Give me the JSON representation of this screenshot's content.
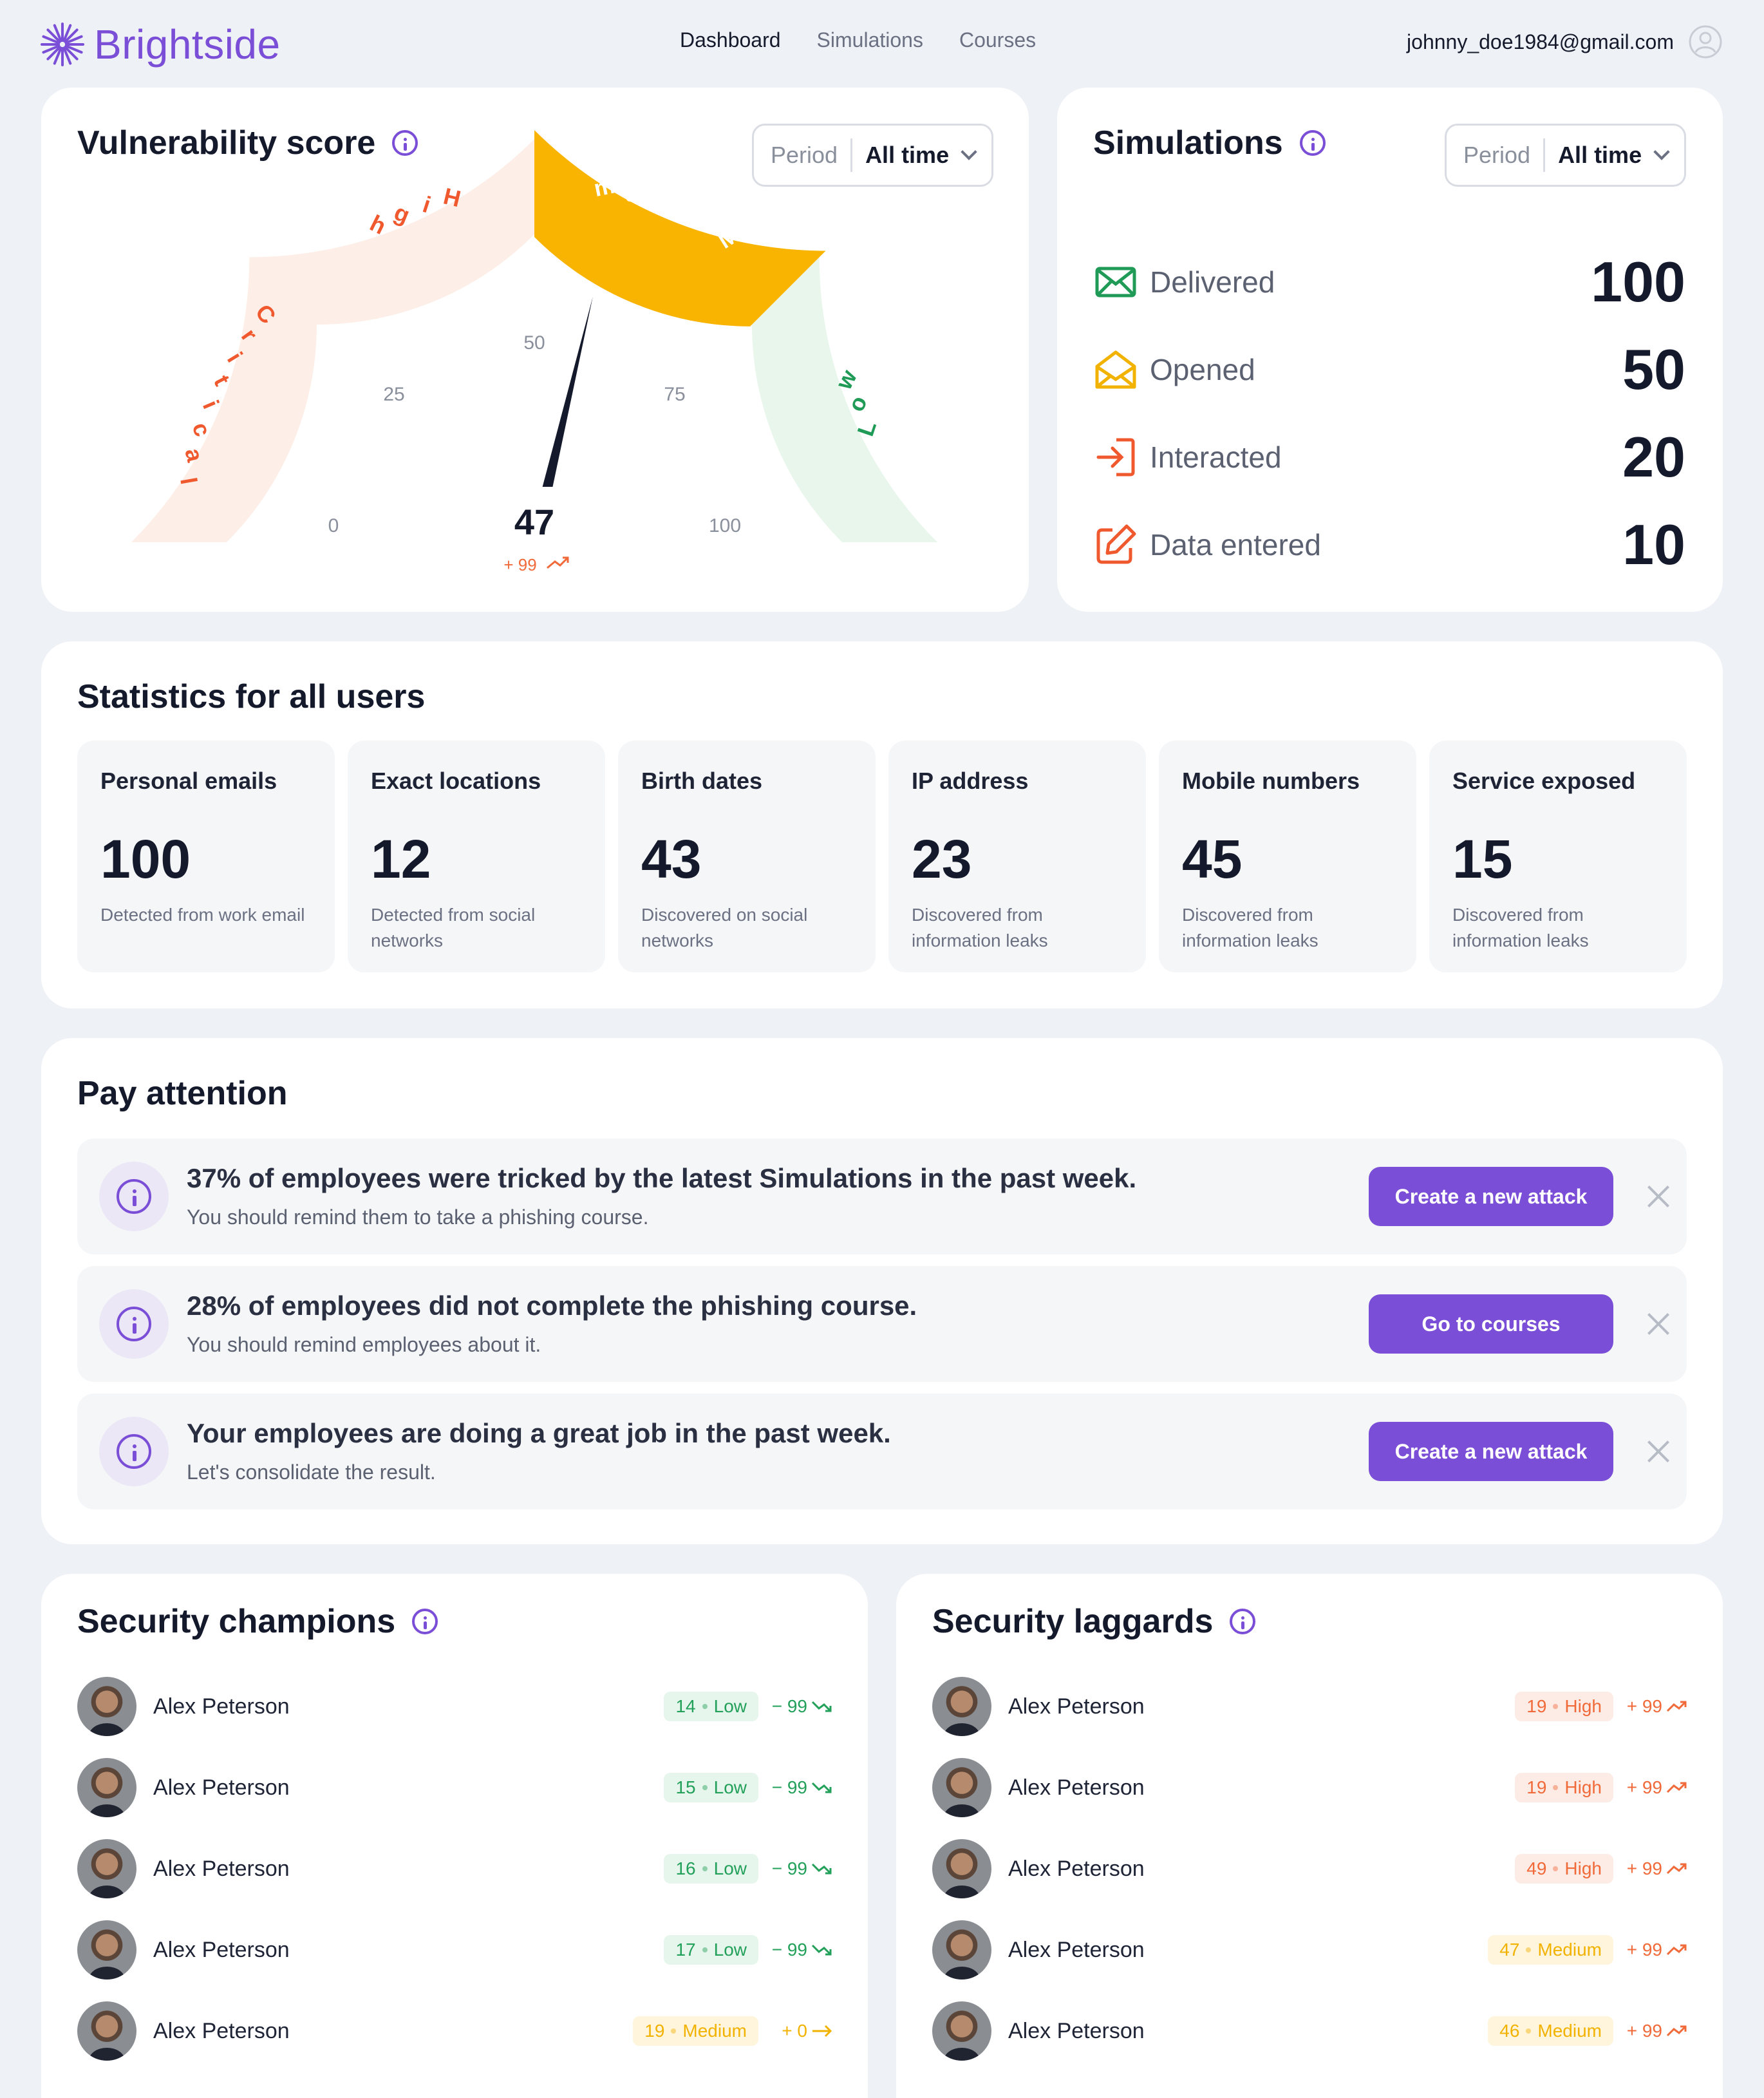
{
  "header": {
    "brand": "Brightside",
    "nav": [
      "Dashboard",
      "Simulations",
      "Courses"
    ],
    "user_email": "johnny_doe1984@gmail.com"
  },
  "vulnerability": {
    "title": "Vulnerability score",
    "period_label": "Period",
    "period_value": "All time",
    "score": "47",
    "change": "+ 99",
    "zones": [
      "Low",
      "Medium",
      "High",
      "Critical"
    ],
    "ticks": [
      "0",
      "25",
      "50",
      "75",
      "100"
    ],
    "score_value": 47
  },
  "simulations": {
    "title": "Simulations",
    "period_label": "Period",
    "period_value": "All time",
    "rows": [
      {
        "label": "Delivered",
        "value": "100",
        "icon": "mail-icon",
        "color": "#1f9b57"
      },
      {
        "label": "Opened",
        "value": "50",
        "icon": "mail-open-icon",
        "color": "#f2b200"
      },
      {
        "label": "Interacted",
        "value": "20",
        "icon": "enter-icon",
        "color": "#f0582e"
      },
      {
        "label": "Data entered",
        "value": "10",
        "icon": "edit-icon",
        "color": "#f0582e"
      }
    ]
  },
  "statistics": {
    "title": "Statistics for all users",
    "items": [
      {
        "title": "Personal emails",
        "value": "100",
        "desc": "Detected from work email"
      },
      {
        "title": "Exact locations",
        "value": "12",
        "desc": "Detected from social networks"
      },
      {
        "title": "Birth dates",
        "value": "43",
        "desc": "Discovered on social networks"
      },
      {
        "title": "IP address",
        "value": "23",
        "desc": "Discovered from information leaks"
      },
      {
        "title": "Mobile numbers",
        "value": "45",
        "desc": "Discovered from information leaks"
      },
      {
        "title": "Service exposed",
        "value": "15",
        "desc": "Discovered from information leaks"
      }
    ]
  },
  "attention": {
    "title": "Pay attention",
    "alerts": [
      {
        "heading": "37% of employees were tricked by the latest Simulations in the past week.",
        "sub": "You should remind them to take a phishing course.",
        "button": "Create a new attack"
      },
      {
        "heading": "28% of employees did not complete the phishing course.",
        "sub": "You should remind employees about it.",
        "button": "Go to courses"
      },
      {
        "heading": "Your employees are doing a great job in the past week.",
        "sub": "Let's consolidate the result.",
        "button": "Create a new attack"
      }
    ]
  },
  "champions": {
    "title": "Security champions",
    "rows": [
      {
        "name": "Alex Peterson",
        "score": "14",
        "level": "Low",
        "delta": "− 99",
        "trend": "down"
      },
      {
        "name": "Alex Peterson",
        "score": "15",
        "level": "Low",
        "delta": "− 99",
        "trend": "down"
      },
      {
        "name": "Alex Peterson",
        "score": "16",
        "level": "Low",
        "delta": "− 99",
        "trend": "down"
      },
      {
        "name": "Alex Peterson",
        "score": "17",
        "level": "Low",
        "delta": "− 99",
        "trend": "down"
      },
      {
        "name": "Alex Peterson",
        "score": "19",
        "level": "Medium",
        "delta": "+ 0",
        "trend": "flat"
      }
    ]
  },
  "laggards": {
    "title": "Security laggards",
    "rows": [
      {
        "name": "Alex Peterson",
        "score": "19",
        "level": "High",
        "delta": "+ 99",
        "trend": "up"
      },
      {
        "name": "Alex Peterson",
        "score": "19",
        "level": "High",
        "delta": "+ 99",
        "trend": "up"
      },
      {
        "name": "Alex Peterson",
        "score": "49",
        "level": "High",
        "delta": "+ 99",
        "trend": "up"
      },
      {
        "name": "Alex Peterson",
        "score": "47",
        "level": "Medium",
        "delta": "+ 99",
        "trend": "up"
      },
      {
        "name": "Alex Peterson",
        "score": "46",
        "level": "Medium",
        "delta": "+ 99",
        "trend": "up"
      }
    ]
  },
  "colors": {
    "accent": "#7a4ed6",
    "low": "#23a05a",
    "medium": "#f2b200",
    "high": "#f06a3a"
  }
}
